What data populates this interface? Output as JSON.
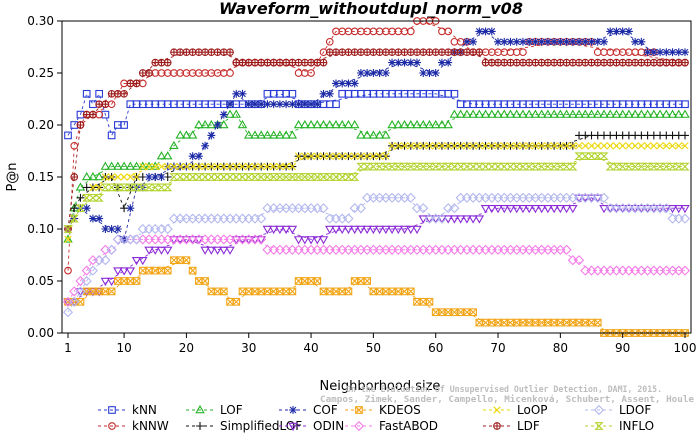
{
  "chart_data": {
    "type": "line",
    "title": "Waveform_withoutdupl_norm_v08",
    "xlabel": "Neighborhood size",
    "ylabel": "P@n",
    "xlim": [
      0,
      100
    ],
    "ylim": [
      0,
      0.3
    ],
    "x_ticks": [
      1,
      10,
      20,
      30,
      40,
      50,
      60,
      70,
      80,
      90,
      100
    ],
    "y_ticks": [
      "0.00",
      "0.05",
      "0.10",
      "0.15",
      "0.20",
      "0.25",
      "0.30"
    ],
    "grid": false,
    "legend_position": "bottom",
    "credit_lines": [
      "Campos, Zimek, Sander, Campello, Micenková, Schubert, Assent, Houle",
      "On the Evaluation of Unsupervised Outlier Detection, DAMI, 2015."
    ],
    "series": [
      {
        "name": "kNN",
        "color": "#2a3bd6",
        "marker": "square",
        "points": [
          [
            1,
            0.19
          ],
          [
            2,
            0.2
          ],
          [
            3,
            0.21
          ],
          [
            4,
            0.23
          ],
          [
            5,
            0.22
          ],
          [
            6,
            0.23
          ],
          [
            7,
            0.21
          ],
          [
            8,
            0.19
          ],
          [
            9,
            0.2
          ],
          [
            10,
            0.2
          ],
          [
            11,
            0.22
          ],
          [
            20,
            0.22
          ],
          [
            30,
            0.22
          ],
          [
            35,
            0.23
          ],
          [
            40,
            0.22
          ],
          [
            50,
            0.23
          ],
          [
            60,
            0.23
          ],
          [
            66,
            0.22
          ],
          [
            80,
            0.22
          ],
          [
            90,
            0.22
          ],
          [
            100,
            0.22
          ]
        ]
      },
      {
        "name": "kNNW",
        "color": "#c62b2b",
        "marker": "circle",
        "points": [
          [
            1,
            0.06
          ],
          [
            2,
            0.18
          ],
          [
            3,
            0.2
          ],
          [
            4,
            0.21
          ],
          [
            5,
            0.21
          ],
          [
            8,
            0.22
          ],
          [
            10,
            0.24
          ],
          [
            12,
            0.24
          ],
          [
            15,
            0.25
          ],
          [
            20,
            0.25
          ],
          [
            25,
            0.25
          ],
          [
            30,
            0.26
          ],
          [
            35,
            0.26
          ],
          [
            40,
            0.25
          ],
          [
            44,
            0.29
          ],
          [
            50,
            0.29
          ],
          [
            55,
            0.29
          ],
          [
            58,
            0.3
          ],
          [
            62,
            0.29
          ],
          [
            66,
            0.27
          ],
          [
            70,
            0.27
          ],
          [
            80,
            0.28
          ],
          [
            90,
            0.27
          ],
          [
            100,
            0.26
          ]
        ]
      },
      {
        "name": "LOF",
        "color": "#27b327",
        "marker": "triangle",
        "points": [
          [
            1,
            0.09
          ],
          [
            2,
            0.12
          ],
          [
            3,
            0.14
          ],
          [
            5,
            0.15
          ],
          [
            8,
            0.16
          ],
          [
            10,
            0.16
          ],
          [
            15,
            0.16
          ],
          [
            18,
            0.18
          ],
          [
            20,
            0.19
          ],
          [
            23,
            0.2
          ],
          [
            25,
            0.2
          ],
          [
            28,
            0.21
          ],
          [
            30,
            0.19
          ],
          [
            35,
            0.19
          ],
          [
            40,
            0.2
          ],
          [
            45,
            0.2
          ],
          [
            50,
            0.19
          ],
          [
            55,
            0.2
          ],
          [
            60,
            0.2
          ],
          [
            65,
            0.21
          ],
          [
            70,
            0.21
          ],
          [
            80,
            0.21
          ],
          [
            90,
            0.21
          ],
          [
            100,
            0.21
          ]
        ]
      },
      {
        "name": "SimplifiedLOF",
        "color": "#111111",
        "marker": "plus",
        "points": [
          [
            1,
            0.1
          ],
          [
            2,
            0.12
          ],
          [
            3,
            0.13
          ],
          [
            5,
            0.14
          ],
          [
            8,
            0.15
          ],
          [
            10,
            0.12
          ],
          [
            12,
            0.15
          ],
          [
            15,
            0.15
          ],
          [
            20,
            0.16
          ],
          [
            25,
            0.16
          ],
          [
            30,
            0.16
          ],
          [
            35,
            0.16
          ],
          [
            40,
            0.17
          ],
          [
            45,
            0.17
          ],
          [
            50,
            0.17
          ],
          [
            55,
            0.18
          ],
          [
            60,
            0.18
          ],
          [
            65,
            0.18
          ],
          [
            70,
            0.18
          ],
          [
            80,
            0.18
          ],
          [
            85,
            0.19
          ],
          [
            90,
            0.19
          ],
          [
            100,
            0.19
          ]
        ]
      },
      {
        "name": "COF",
        "color": "#1c2aa6",
        "marker": "star",
        "points": [
          [
            1,
            0.1
          ],
          [
            3,
            0.12
          ],
          [
            5,
            0.11
          ],
          [
            8,
            0.1
          ],
          [
            10,
            0.09
          ],
          [
            12,
            0.14
          ],
          [
            15,
            0.15
          ],
          [
            18,
            0.16
          ],
          [
            20,
            0.16
          ],
          [
            22,
            0.17
          ],
          [
            25,
            0.2
          ],
          [
            28,
            0.23
          ],
          [
            30,
            0.22
          ],
          [
            35,
            0.22
          ],
          [
            40,
            0.22
          ],
          [
            45,
            0.24
          ],
          [
            50,
            0.25
          ],
          [
            55,
            0.26
          ],
          [
            60,
            0.25
          ],
          [
            65,
            0.28
          ],
          [
            68,
            0.29
          ],
          [
            70,
            0.28
          ],
          [
            80,
            0.28
          ],
          [
            85,
            0.28
          ],
          [
            90,
            0.29
          ],
          [
            95,
            0.27
          ],
          [
            100,
            0.27
          ]
        ]
      },
      {
        "name": "ODIN",
        "color": "#8a2bd6",
        "marker": "triangle-down",
        "points": [
          [
            1,
            0.03
          ],
          [
            5,
            0.04
          ],
          [
            10,
            0.06
          ],
          [
            15,
            0.08
          ],
          [
            20,
            0.09
          ],
          [
            25,
            0.08
          ],
          [
            30,
            0.09
          ],
          [
            35,
            0.1
          ],
          [
            40,
            0.09
          ],
          [
            45,
            0.1
          ],
          [
            50,
            0.1
          ],
          [
            55,
            0.1
          ],
          [
            60,
            0.11
          ],
          [
            65,
            0.11
          ],
          [
            70,
            0.12
          ],
          [
            75,
            0.12
          ],
          [
            80,
            0.12
          ],
          [
            85,
            0.13
          ],
          [
            88,
            0.12
          ],
          [
            90,
            0.12
          ],
          [
            100,
            0.12
          ]
        ]
      },
      {
        "name": "KDEOS",
        "color": "#f2a516",
        "marker": "square-x",
        "points": [
          [
            1,
            0.03
          ],
          [
            3,
            0.03
          ],
          [
            5,
            0.04
          ],
          [
            8,
            0.04
          ],
          [
            10,
            0.05
          ],
          [
            15,
            0.06
          ],
          [
            20,
            0.07
          ],
          [
            22,
            0.05
          ],
          [
            25,
            0.04
          ],
          [
            28,
            0.03
          ],
          [
            30,
            0.04
          ],
          [
            35,
            0.04
          ],
          [
            40,
            0.05
          ],
          [
            42,
            0.04
          ],
          [
            45,
            0.04
          ],
          [
            48,
            0.05
          ],
          [
            50,
            0.04
          ],
          [
            55,
            0.04
          ],
          [
            58,
            0.03
          ],
          [
            60,
            0.02
          ],
          [
            65,
            0.02
          ],
          [
            68,
            0.01
          ],
          [
            75,
            0.01
          ],
          [
            80,
            0.01
          ],
          [
            85,
            0.01
          ],
          [
            88,
            0.0
          ],
          [
            90,
            0.0
          ],
          [
            100,
            0.0
          ]
        ]
      },
      {
        "name": "FastABOD",
        "color": "#f57ce8",
        "marker": "diamond",
        "points": [
          [
            1,
            0.03
          ],
          [
            3,
            0.05
          ],
          [
            5,
            0.07
          ],
          [
            8,
            0.08
          ],
          [
            10,
            0.09
          ],
          [
            15,
            0.09
          ],
          [
            20,
            0.09
          ],
          [
            25,
            0.09
          ],
          [
            30,
            0.09
          ],
          [
            35,
            0.08
          ],
          [
            40,
            0.08
          ],
          [
            45,
            0.08
          ],
          [
            50,
            0.08
          ],
          [
            55,
            0.08
          ],
          [
            60,
            0.08
          ],
          [
            65,
            0.08
          ],
          [
            70,
            0.08
          ],
          [
            75,
            0.08
          ],
          [
            80,
            0.08
          ],
          [
            85,
            0.06
          ],
          [
            90,
            0.06
          ],
          [
            95,
            0.06
          ],
          [
            100,
            0.06
          ]
        ]
      },
      {
        "name": "LoOP",
        "color": "#ecd80c",
        "marker": "x",
        "points": [
          [
            1,
            0.09
          ],
          [
            2,
            0.11
          ],
          [
            3,
            0.12
          ],
          [
            5,
            0.14
          ],
          [
            8,
            0.15
          ],
          [
            10,
            0.15
          ],
          [
            15,
            0.16
          ],
          [
            20,
            0.16
          ],
          [
            25,
            0.16
          ],
          [
            30,
            0.16
          ],
          [
            35,
            0.16
          ],
          [
            40,
            0.17
          ],
          [
            45,
            0.17
          ],
          [
            50,
            0.17
          ],
          [
            55,
            0.18
          ],
          [
            60,
            0.18
          ],
          [
            65,
            0.18
          ],
          [
            70,
            0.18
          ],
          [
            75,
            0.18
          ],
          [
            80,
            0.18
          ],
          [
            85,
            0.18
          ],
          [
            90,
            0.18
          ],
          [
            100,
            0.18
          ]
        ]
      },
      {
        "name": "LDF",
        "color": "#9e1c1c",
        "marker": "circle-plus",
        "points": [
          [
            1,
            0.1
          ],
          [
            3,
            0.2
          ],
          [
            5,
            0.21
          ],
          [
            8,
            0.23
          ],
          [
            10,
            0.23
          ],
          [
            12,
            0.24
          ],
          [
            15,
            0.26
          ],
          [
            20,
            0.27
          ],
          [
            25,
            0.27
          ],
          [
            30,
            0.26
          ],
          [
            35,
            0.26
          ],
          [
            40,
            0.26
          ],
          [
            45,
            0.27
          ],
          [
            50,
            0.27
          ],
          [
            55,
            0.27
          ],
          [
            60,
            0.27
          ],
          [
            65,
            0.27
          ],
          [
            70,
            0.26
          ],
          [
            75,
            0.26
          ],
          [
            80,
            0.26
          ],
          [
            90,
            0.26
          ],
          [
            100,
            0.26
          ]
        ]
      },
      {
        "name": "LDOF",
        "color": "#b3b8ee",
        "marker": "diamond",
        "points": [
          [
            1,
            0.02
          ],
          [
            3,
            0.04
          ],
          [
            5,
            0.06
          ],
          [
            8,
            0.08
          ],
          [
            10,
            0.09
          ],
          [
            15,
            0.1
          ],
          [
            20,
            0.11
          ],
          [
            25,
            0.11
          ],
          [
            30,
            0.11
          ],
          [
            35,
            0.12
          ],
          [
            40,
            0.12
          ],
          [
            45,
            0.11
          ],
          [
            50,
            0.13
          ],
          [
            55,
            0.13
          ],
          [
            60,
            0.11
          ],
          [
            65,
            0.13
          ],
          [
            70,
            0.13
          ],
          [
            75,
            0.13
          ],
          [
            80,
            0.13
          ],
          [
            85,
            0.13
          ],
          [
            90,
            0.12
          ],
          [
            95,
            0.12
          ],
          [
            100,
            0.11
          ]
        ]
      },
      {
        "name": "INFLO",
        "color": "#b2d22e",
        "marker": "hourglass",
        "points": [
          [
            1,
            0.1
          ],
          [
            2,
            0.11
          ],
          [
            3,
            0.12
          ],
          [
            5,
            0.13
          ],
          [
            8,
            0.14
          ],
          [
            10,
            0.14
          ],
          [
            15,
            0.14
          ],
          [
            20,
            0.15
          ],
          [
            25,
            0.15
          ],
          [
            30,
            0.15
          ],
          [
            35,
            0.15
          ],
          [
            40,
            0.15
          ],
          [
            45,
            0.15
          ],
          [
            50,
            0.16
          ],
          [
            55,
            0.16
          ],
          [
            60,
            0.16
          ],
          [
            65,
            0.16
          ],
          [
            70,
            0.16
          ],
          [
            80,
            0.16
          ],
          [
            85,
            0.17
          ],
          [
            90,
            0.16
          ],
          [
            100,
            0.16
          ]
        ]
      }
    ]
  }
}
